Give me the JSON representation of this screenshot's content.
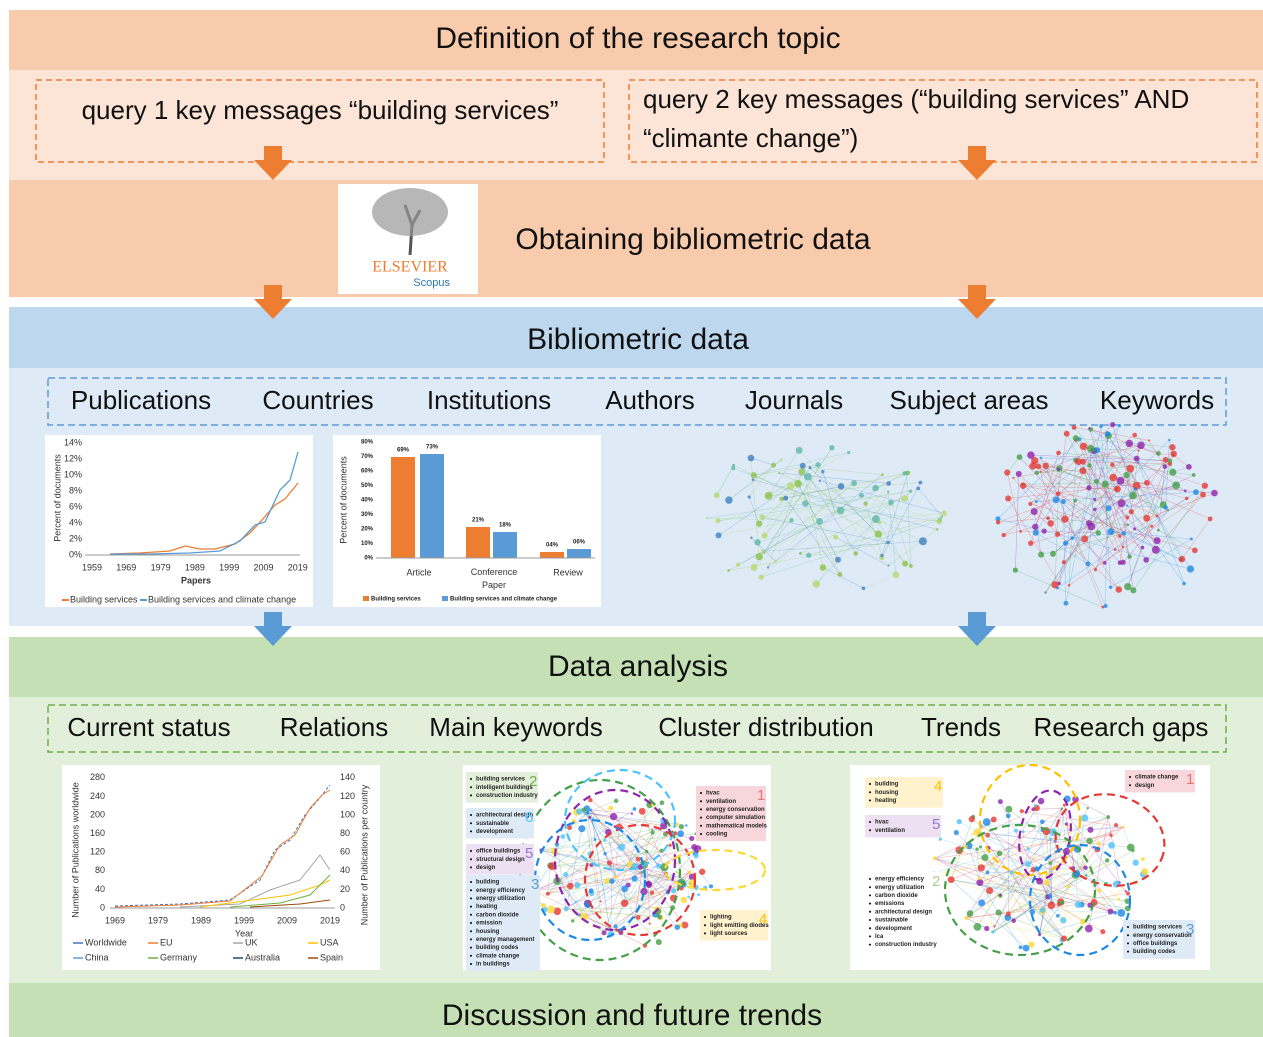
{
  "stage1": {
    "title": "Definition of the research topic",
    "queries": [
      "query 1 key messages “building services”",
      "query 2 key messages (“building services”  AND",
      "“climante change”)"
    ]
  },
  "stage2": {
    "title": "Obtaining bibliometric data",
    "logo": "ELSEVIER",
    "logo_sub": "Scopus"
  },
  "stage3": {
    "title": "Bibliometric data",
    "items": [
      "Publications",
      "Countries",
      "Institutions",
      "Authors",
      "Journals",
      "Subject areas",
      "Keywords"
    ],
    "chart1": {
      "yticks": [
        "0%",
        "2%",
        "4%",
        "6%",
        "8%",
        "10%",
        "12%",
        "14%"
      ],
      "xticks": [
        "1959",
        "1969",
        "1979",
        "1989",
        "1999",
        "2009",
        "2019"
      ],
      "xlabel": "Papers",
      "ylabel": "Percent of documents",
      "legend": [
        "Building services",
        "Building services and climate change"
      ]
    },
    "chart2": {
      "yticks": [
        "0%",
        "10%",
        "20%",
        "30%",
        "40%",
        "50%",
        "60%",
        "70%",
        "80%"
      ],
      "categories": [
        "Article",
        "Conference Paper",
        "Review"
      ],
      "ylabel": "Percent of documents",
      "labels": [
        [
          "69%",
          "73%"
        ],
        [
          "21%",
          "18%"
        ],
        [
          "04%",
          "06%"
        ]
      ],
      "legend": [
        "Building services",
        "Building services and climate change"
      ]
    }
  },
  "stage4": {
    "title": "Data analysis",
    "items": [
      "Current status",
      "Relations",
      "Main keywords",
      "Cluster distribution",
      "Trends",
      "Research gaps"
    ],
    "chart3": {
      "yticks": [
        "0",
        "40",
        "80",
        "120",
        "160",
        "200",
        "240",
        "280"
      ],
      "y2ticks": [
        "0",
        "20",
        "40",
        "60",
        "80",
        "100",
        "120",
        "140"
      ],
      "xticks": [
        "1969",
        "1979",
        "1989",
        "1999",
        "2009",
        "2019"
      ],
      "xlabel": "Year",
      "ylabel": "Number of Publications worldwide",
      "y2label": "Number of Publications per country",
      "legend": [
        "Worldwide",
        "EU",
        "UK",
        "USA",
        "China",
        "Germany",
        "Australia",
        "Spain"
      ]
    },
    "clusters1": [
      {
        "number": "2",
        "terms": [
          "building services",
          "intelligent buildings",
          "construction industry"
        ]
      },
      {
        "number": "1",
        "terms": [
          "hvac",
          "ventilation",
          "energy conservation",
          "computer simulation",
          "mathematical models",
          "cooling"
        ]
      },
      {
        "number": "6",
        "terms": [
          "architectural design",
          "sustainable",
          "development"
        ]
      },
      {
        "number": "5",
        "terms": [
          "office buildings",
          "structural design",
          "design"
        ]
      },
      {
        "number": "3",
        "terms": [
          "building",
          "energy efficiency",
          "energy utilization",
          "heating",
          "carbon dioxide",
          "emission",
          "housing",
          "energy management",
          "building codes",
          "climate change",
          "in buildings"
        ]
      },
      {
        "number": "4",
        "terms": [
          "lighting",
          "light emitting diodes",
          "light sources"
        ]
      }
    ],
    "clusters2": [
      {
        "number": "1",
        "terms": [
          "climate change",
          "design"
        ]
      },
      {
        "number": "4",
        "terms": [
          "building",
          "housing",
          "heating"
        ]
      },
      {
        "number": "5",
        "terms": [
          "hvac",
          "ventilation"
        ]
      },
      {
        "number": "2",
        "terms": [
          "energy efficiency",
          "energy utilization",
          "carbon dioxide",
          "emissions",
          "architectural design",
          "sustainable",
          "development",
          "lca",
          "construction industry"
        ]
      },
      {
        "number": "3",
        "terms": [
          "building services",
          "energy conservation",
          "office buildings",
          "building codes"
        ]
      }
    ]
  },
  "stage5": {
    "title": "Discussion and future trends"
  }
}
